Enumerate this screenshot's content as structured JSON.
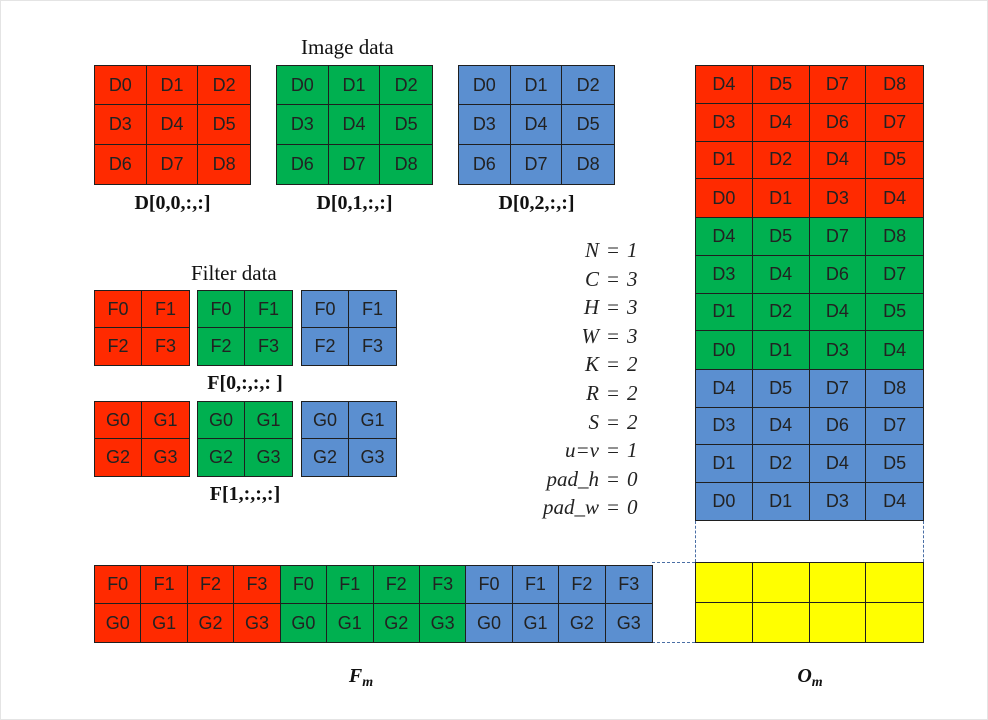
{
  "image_data": {
    "title": "Image data",
    "cells": [
      [
        "D0",
        "D1",
        "D2"
      ],
      [
        "D3",
        "D4",
        "D5"
      ],
      [
        "D6",
        "D7",
        "D8"
      ]
    ],
    "captions": [
      "D[0,0,:,:]",
      "D[0,1,:,:]",
      "D[0,2,:,:]"
    ]
  },
  "filter_data": {
    "title": "Filter data",
    "f_cells": [
      [
        "F0",
        "F1"
      ],
      [
        "F2",
        "F3"
      ]
    ],
    "g_cells": [
      [
        "G0",
        "G1"
      ],
      [
        "G2",
        "G3"
      ]
    ],
    "captions": [
      "F[0,:,:,: ]",
      "F[1,:,:,:]"
    ]
  },
  "params": [
    {
      "name": "N",
      "value": "1"
    },
    {
      "name": "C",
      "value": "3"
    },
    {
      "name": "H",
      "value": "3"
    },
    {
      "name": "W",
      "value": "3"
    },
    {
      "name": "K",
      "value": "2"
    },
    {
      "name": "R",
      "value": "2"
    },
    {
      "name": "S",
      "value": "2"
    },
    {
      "name": "u=v",
      "value": "1"
    },
    {
      "name": "pad_h",
      "value": "0"
    },
    {
      "name": "pad_w",
      "value": "0"
    }
  ],
  "om": {
    "rows": [
      [
        "D4",
        "D5",
        "D7",
        "D8"
      ],
      [
        "D3",
        "D4",
        "D6",
        "D7"
      ],
      [
        "D1",
        "D2",
        "D4",
        "D5"
      ],
      [
        "D0",
        "D1",
        "D3",
        "D4"
      ]
    ],
    "label_main": "O",
    "label_sub": "m"
  },
  "fm": {
    "rows": [
      [
        "F0",
        "F1",
        "F2",
        "F3",
        "F0",
        "F1",
        "F2",
        "F3",
        "F0",
        "F1",
        "F2",
        "F3"
      ],
      [
        "G0",
        "G1",
        "G2",
        "G3",
        "G0",
        "G1",
        "G2",
        "G3",
        "G0",
        "G1",
        "G2",
        "G3"
      ]
    ],
    "label_main": "F",
    "label_sub": "m"
  },
  "colors": {
    "channel_0": "#ff2a00",
    "channel_1": "#00b050",
    "channel_2": "#5b8fd0",
    "output": "#ffff00"
  }
}
